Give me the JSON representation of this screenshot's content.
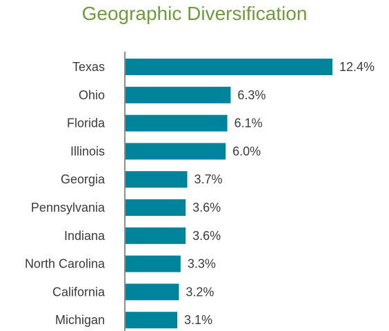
{
  "chart_data": {
    "type": "bar",
    "orientation": "horizontal",
    "title": "Geographic Diversification",
    "categories": [
      "Texas",
      "Ohio",
      "Florida",
      "Illinois",
      "Georgia",
      "Pennsylvania",
      "Indiana",
      "North Carolina",
      "California",
      "Michigan"
    ],
    "values": [
      12.4,
      6.3,
      6.1,
      6.0,
      3.7,
      3.6,
      3.6,
      3.3,
      3.2,
      3.1
    ],
    "value_labels": [
      "12.4%",
      "6.3%",
      "6.1%",
      "6.0%",
      "3.7%",
      "3.6%",
      "3.6%",
      "3.3%",
      "3.2%",
      "3.1%"
    ],
    "xlabel": "",
    "ylabel": "",
    "xlim": [
      0,
      12.4
    ],
    "grid": false,
    "legend": "none"
  },
  "colors": {
    "bar": "#00849b",
    "title": "#6f9a3e",
    "axis": "#8c8c8c",
    "text": "#3a3a3a"
  }
}
